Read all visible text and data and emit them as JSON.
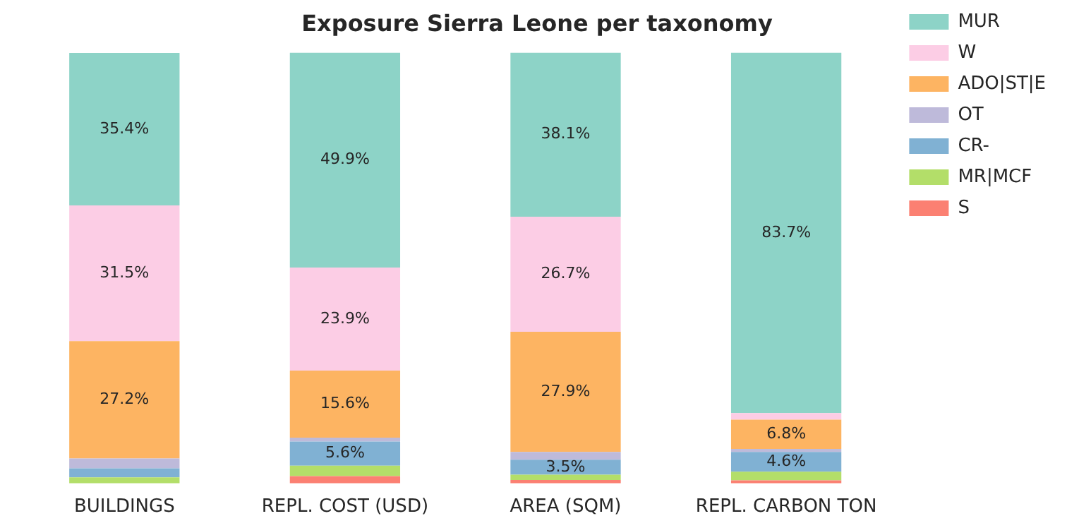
{
  "chart_data": {
    "type": "bar",
    "title": "Exposure Sierra Leone per taxonomy",
    "categories": [
      "BUILDINGS",
      "REPL. COST (USD)",
      "AREA (SQM)",
      "REPL. CARBON TON"
    ],
    "stacked": true,
    "ylim": [
      0,
      100
    ],
    "tick_labels": "x",
    "grid": false,
    "legend": "top right",
    "series": [
      {
        "name": "S",
        "color": "#fb8072",
        "values": [
          null,
          1.7,
          0.8,
          0.7
        ],
        "value_labels": [
          null,
          null,
          null,
          null
        ]
      },
      {
        "name": "MR|MCF",
        "color": "#b3de69",
        "values": [
          1.4,
          2.4,
          1.2,
          2.0
        ],
        "value_labels": [
          null,
          null,
          null,
          null
        ]
      },
      {
        "name": "CR-",
        "color": "#80b1d3",
        "values": [
          2.1,
          5.6,
          3.5,
          4.6
        ],
        "value_labels": [
          null,
          "5.6%",
          "3.5%",
          "4.6%"
        ]
      },
      {
        "name": "OT",
        "color": "#bebada",
        "values": [
          2.3,
          0.9,
          1.8,
          0.7
        ],
        "value_labels": [
          null,
          null,
          null,
          null
        ]
      },
      {
        "name": "ADO|ST|E",
        "color": "#fdb462",
        "values": [
          27.2,
          15.6,
          27.9,
          6.8
        ],
        "value_labels": [
          "27.2%",
          "15.6%",
          "27.9%",
          "6.8%"
        ]
      },
      {
        "name": "W",
        "color": "#fccde5",
        "values": [
          31.5,
          23.9,
          26.7,
          1.5
        ],
        "value_labels": [
          "31.5%",
          "23.9%",
          "26.7%",
          null
        ]
      },
      {
        "name": "MUR",
        "color": "#8dd3c7",
        "values": [
          35.4,
          49.9,
          38.1,
          83.7
        ],
        "value_labels": [
          "35.4%",
          "49.9%",
          "38.1%",
          "83.7%"
        ]
      }
    ]
  }
}
